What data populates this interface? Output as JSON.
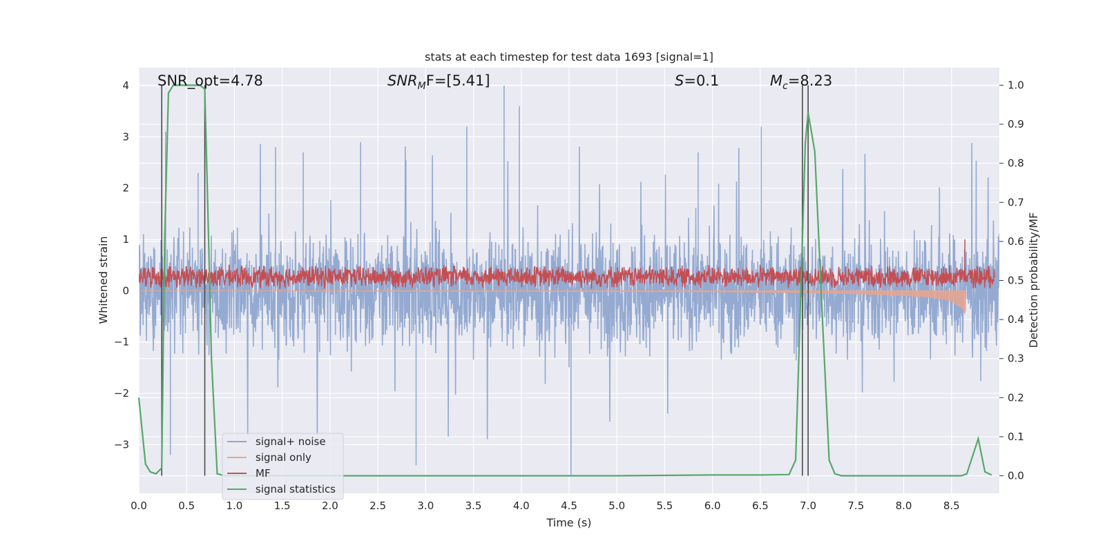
{
  "chart_data": {
    "type": "line",
    "title": "stats at each timestep for test data 1693 [signal=1]",
    "xlabel": "Time (s)",
    "ylabel": "Whitened strain",
    "ylabel_right": "Detection probability/MF",
    "xlim": [
      0,
      9.0
    ],
    "ylim": [
      -3.95,
      4.35
    ],
    "ylim_right": [
      -0.045,
      1.045
    ],
    "x_ticks": [
      "0.0",
      "0.5",
      "1.0",
      "1.5",
      "2.0",
      "2.5",
      "3.0",
      "3.5",
      "4.0",
      "4.5",
      "5.0",
      "5.5",
      "6.0",
      "6.5",
      "7.0",
      "7.5",
      "8.0",
      "8.5"
    ],
    "y_ticks": [
      "4",
      "3",
      "2",
      "1",
      "0",
      "−1",
      "−2",
      "−3"
    ],
    "y_ticks_right": [
      "1.0",
      "0.9",
      "0.8",
      "0.7",
      "0.6",
      "0.5",
      "0.4",
      "0.3",
      "0.2",
      "0.1",
      "0.0"
    ],
    "grid": true,
    "legend_position": "lower-left",
    "annotations": {
      "snr_opt": "SNR_opt=4.78",
      "snr_mf_main": "SNR",
      "snr_mf_sub": "M",
      "snr_mf_rest": "F=[5.41]",
      "s_main": "S",
      "s_rest": "=0.1",
      "mc_main": "M",
      "mc_sub": "c",
      "mc_rest": "=8.23"
    },
    "vertical_markers": [
      0.24,
      0.69,
      6.94,
      7.0
    ],
    "series": [
      {
        "name": "signal+ noise",
        "color": "#8fa6cf",
        "noise_amplitude_typical": 1.4,
        "noise_spike_max": 4.0,
        "noise_spike_min": -3.6
      },
      {
        "name": "signal only",
        "color": "#e8a58e",
        "x": [
          0.0,
          1.0,
          2.0,
          3.0,
          4.0,
          5.0,
          6.0,
          7.0,
          7.5,
          8.0,
          8.3,
          8.5,
          8.62,
          8.64,
          8.65
        ],
        "y": [
          0.0,
          0.0,
          -0.005,
          -0.01,
          -0.01,
          -0.015,
          -0.02,
          -0.04,
          -0.06,
          -0.09,
          -0.13,
          -0.2,
          -0.35,
          -0.45,
          0.0
        ]
      },
      {
        "name": "MF",
        "color": "#c44e52",
        "center": 0.22,
        "spread": 0.2,
        "spike_x": 8.64,
        "spike_y": 1.0
      },
      {
        "name": "signal statistics",
        "color": "#55a868",
        "x": [
          0.0,
          0.07,
          0.12,
          0.18,
          0.24,
          0.27,
          0.31,
          0.36,
          0.45,
          0.55,
          0.64,
          0.69,
          0.72,
          0.76,
          0.82,
          0.9,
          1.2,
          2.0,
          3.0,
          4.0,
          5.0,
          6.0,
          6.5,
          6.8,
          6.87,
          6.94,
          6.97,
          7.0,
          7.07,
          7.15,
          7.22,
          7.28,
          7.35,
          7.5,
          8.0,
          8.5,
          8.6,
          8.66,
          8.72,
          8.78,
          8.85,
          8.92
        ],
        "y": [
          0.2,
          0.03,
          0.01,
          0.005,
          0.02,
          0.6,
          0.98,
          1.0,
          1.0,
          1.0,
          1.0,
          0.99,
          0.7,
          0.3,
          0.005,
          0.0,
          0.0,
          0.0,
          0.0,
          0.0,
          0.0,
          0.002,
          0.002,
          0.003,
          0.04,
          0.6,
          0.85,
          0.93,
          0.83,
          0.4,
          0.04,
          0.005,
          0.0,
          0.0,
          0.0,
          0.0,
          0.0,
          0.005,
          0.05,
          0.095,
          0.01,
          0.002
        ]
      }
    ]
  },
  "colors": {
    "plot_background": "#eaeaf2",
    "grid": "#ffffff",
    "marker_line": "#4a4a4a"
  }
}
